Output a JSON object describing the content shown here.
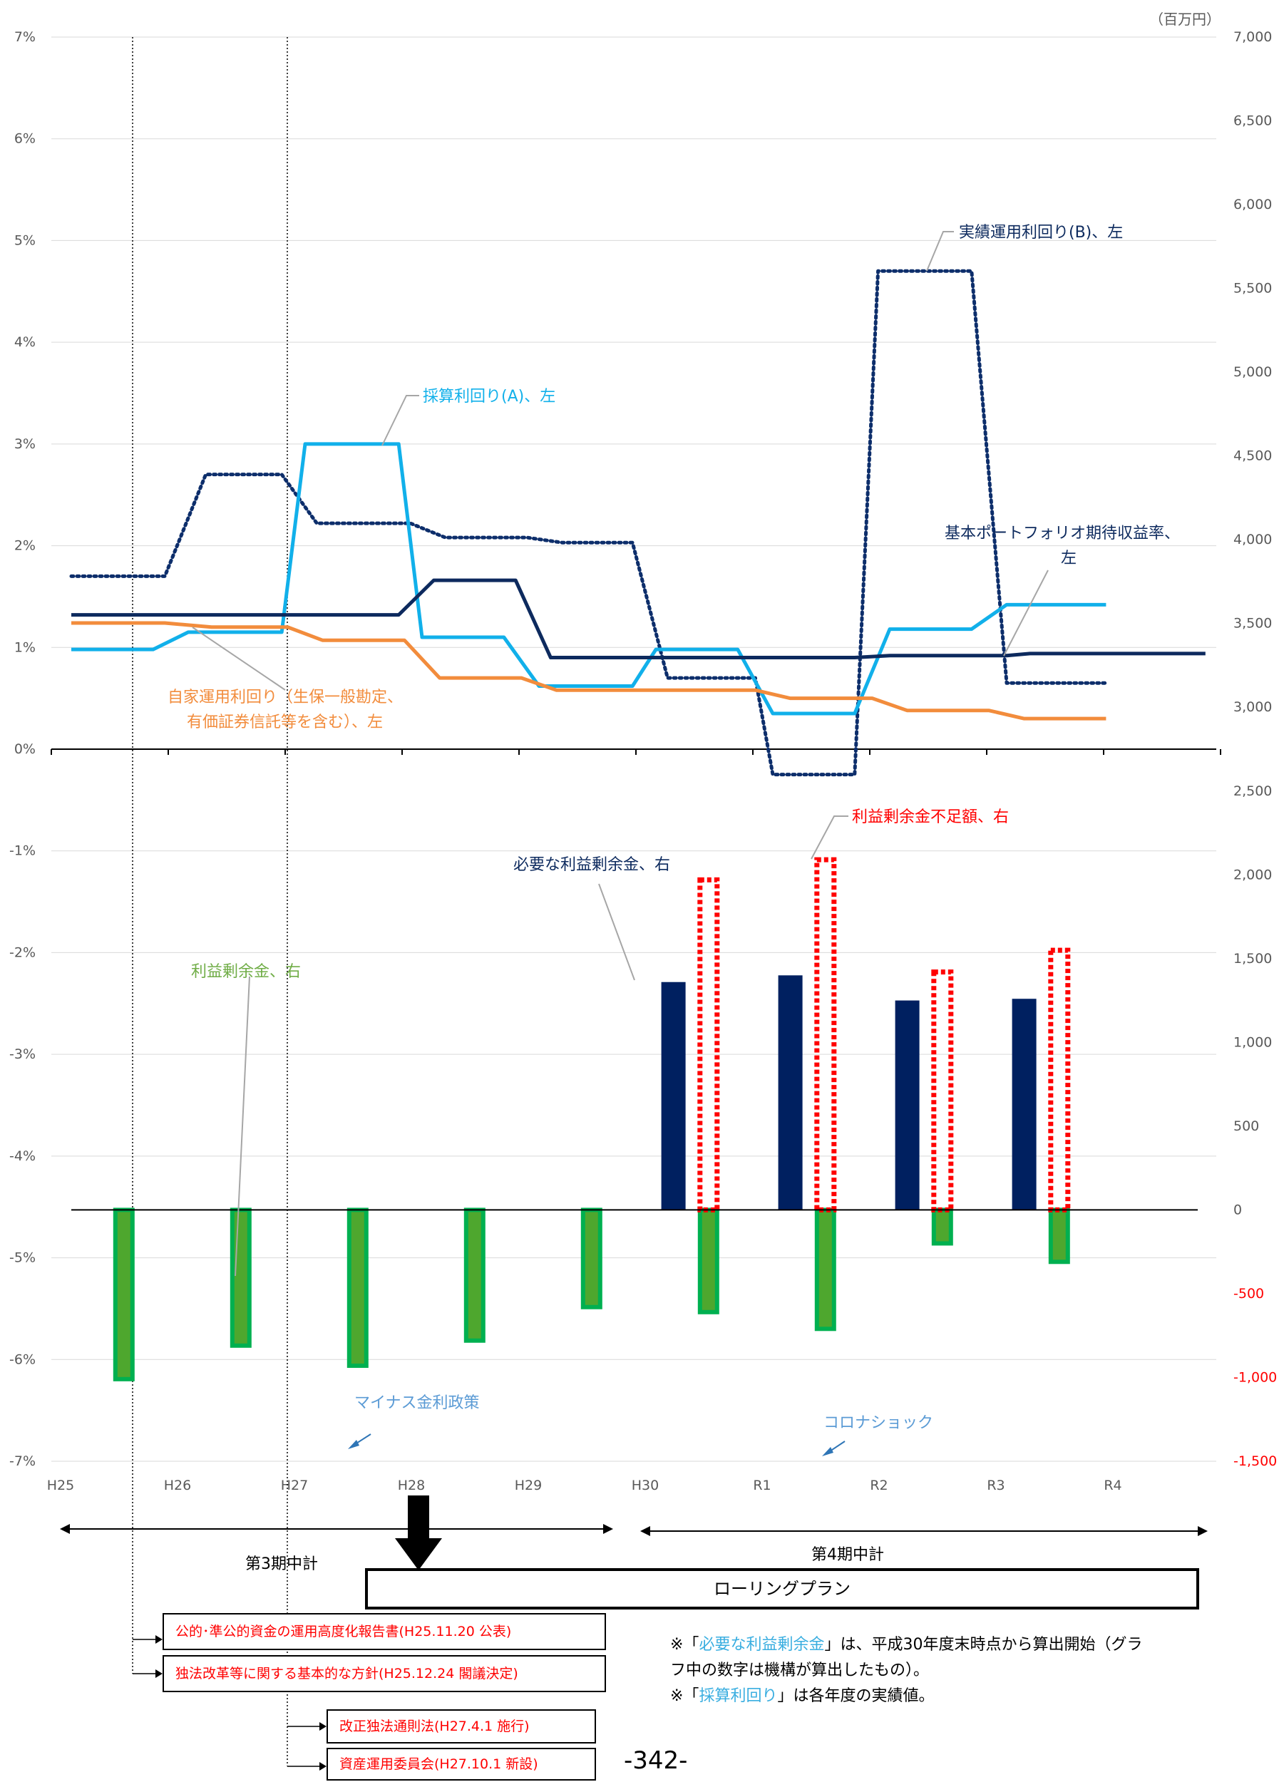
{
  "chart_data": {
    "type": "line+bar",
    "unit_label": "（百万円）",
    "categories": [
      "H25",
      "H26",
      "H27",
      "H28",
      "H29",
      "H30",
      "R1",
      "R2",
      "R3",
      "R4"
    ],
    "y_left": {
      "min": -7,
      "max": 7,
      "step": 1,
      "ticks": [
        "7%",
        "6%",
        "5%",
        "4%",
        "3%",
        "2%",
        "1%",
        "0%",
        "-1%",
        "-2%",
        "-3%",
        "-4%",
        "-5%",
        "-6%",
        "-7%"
      ]
    },
    "y_right": {
      "min": -1500,
      "max": 7000,
      "step": 500,
      "ticks": [
        "7,000",
        "6,500",
        "6,000",
        "5,500",
        "5,000",
        "4,500",
        "4,000",
        "3,500",
        "3,000",
        "2,500",
        "2,000",
        "1,500",
        "1,000",
        "500",
        "0",
        "-500",
        "-1,000",
        "-1,500"
      ]
    },
    "lines": [
      {
        "name": "実績運用利回り(B)、左",
        "color": "#0d2e6b",
        "style": "dotted",
        "points": [
          [
            0.0,
            1.7
          ],
          [
            0.8,
            1.7
          ],
          [
            1.15,
            2.7
          ],
          [
            1.8,
            2.7
          ],
          [
            2.1,
            2.22
          ],
          [
            2.9,
            2.22
          ],
          [
            3.2,
            2.08
          ],
          [
            3.9,
            2.08
          ],
          [
            4.2,
            2.03
          ],
          [
            4.8,
            2.03
          ],
          [
            5.1,
            0.7
          ],
          [
            5.85,
            0.7
          ],
          [
            6.0,
            -0.25
          ],
          [
            6.7,
            -0.25
          ],
          [
            6.9,
            4.7
          ],
          [
            7.7,
            4.7
          ],
          [
            8.0,
            0.65
          ],
          [
            8.85,
            0.65
          ]
        ]
      },
      {
        "name": "採算利回り(A)、左",
        "color": "#11b0ea",
        "style": "solid",
        "points": [
          [
            0.0,
            0.98
          ],
          [
            0.7,
            0.98
          ],
          [
            1.0,
            1.15
          ],
          [
            1.8,
            1.15
          ],
          [
            2.0,
            3.0
          ],
          [
            2.8,
            3.0
          ],
          [
            3.0,
            1.1
          ],
          [
            3.7,
            1.1
          ],
          [
            4.0,
            0.62
          ],
          [
            4.8,
            0.62
          ],
          [
            5.0,
            0.98
          ],
          [
            5.7,
            0.98
          ],
          [
            6.0,
            0.35
          ],
          [
            6.7,
            0.35
          ],
          [
            7.0,
            1.18
          ],
          [
            7.7,
            1.18
          ],
          [
            8.0,
            1.42
          ],
          [
            8.85,
            1.42
          ]
        ]
      },
      {
        "name": "基本ポートフォリオ期待収益率、左",
        "color": "#0d2a5e",
        "style": "solid",
        "points": [
          [
            0.0,
            1.32
          ],
          [
            2.8,
            1.32
          ],
          [
            3.1,
            1.66
          ],
          [
            3.8,
            1.66
          ],
          [
            4.1,
            0.9
          ],
          [
            6.7,
            0.9
          ],
          [
            7.0,
            0.92
          ],
          [
            8.0,
            0.92
          ],
          [
            8.2,
            0.94
          ],
          [
            9.7,
            0.94
          ]
        ]
      },
      {
        "name": "自家運用利回り（生保一般勘定、有価証券信託等を含む）、左",
        "color": "#f28c3c",
        "style": "solid",
        "points": [
          [
            0.0,
            1.24
          ],
          [
            0.8,
            1.24
          ],
          [
            1.2,
            1.2
          ],
          [
            1.85,
            1.2
          ],
          [
            2.15,
            1.07
          ],
          [
            2.85,
            1.07
          ],
          [
            3.15,
            0.7
          ],
          [
            3.85,
            0.7
          ],
          [
            4.15,
            0.58
          ],
          [
            5.85,
            0.58
          ],
          [
            6.15,
            0.5
          ],
          [
            6.85,
            0.5
          ],
          [
            7.15,
            0.38
          ],
          [
            7.85,
            0.38
          ],
          [
            8.15,
            0.3
          ],
          [
            8.85,
            0.3
          ]
        ]
      }
    ],
    "bars": [
      {
        "name": "利益剰余金、右",
        "color": "#4ea72e",
        "border": "#00b050",
        "offset": 0.45,
        "values": [
          -1010,
          -810,
          -930,
          -780,
          -580,
          -610,
          -710,
          -200,
          -310
        ]
      },
      {
        "name": "必要な利益剰余金、右",
        "color": "#002060",
        "offset": 0.15,
        "values": [
          null,
          null,
          null,
          null,
          null,
          1360,
          1400,
          1250,
          1260
        ]
      },
      {
        "name": "利益剰余金不足額、右",
        "color": "#ff0000",
        "style": "dotted",
        "offset": 0.45,
        "values": [
          null,
          null,
          null,
          null,
          null,
          1970,
          2090,
          1420,
          1550
        ]
      }
    ],
    "annotations": {
      "jisseki": "実績運用利回り(B)、左",
      "saisan": "採算利回り(A)、左",
      "kihon_1": "基本ポートフォリオ期待収益率、",
      "kihon_2": "左",
      "jika_1": "自家運用利回り（生保一般勘定、",
      "jika_2": "有価証券信託等を含む）、左",
      "fusoku": "利益剰余金不足額、右",
      "hitsuyo": "必要な利益剰余金、右",
      "rieki": "利益剰余金、右",
      "minus": "マイナス金利政策",
      "corona": "コロナショック"
    }
  },
  "periods": {
    "p3": "第3期中計",
    "p4": "第4期中計"
  },
  "rolling_plan": "ローリングプラン",
  "events": [
    {
      "text": "公的･準公的資金の運用高度化報告書(H25.11.20 公表)"
    },
    {
      "text": "独法改革等に関する基本的な方針(H25.12.24 閣議決定)"
    },
    {
      "text": "改正独法通則法(H27.4.1 施行)"
    },
    {
      "text": "資産運用委員会(H27.10.1 新設)"
    }
  ],
  "notes": {
    "line1_pre": "※「",
    "line1_hl": "必要な利益剰余金",
    "line1_post": "」は、平成30年度末時点から算出開始（グラ",
    "line2": "フ中の数字は機構が算出したもの）。",
    "line3_pre": "※「",
    "line3_hl": "採算利回り",
    "line3_post": "」は各年度の実績値。"
  },
  "page_number": "-342-"
}
